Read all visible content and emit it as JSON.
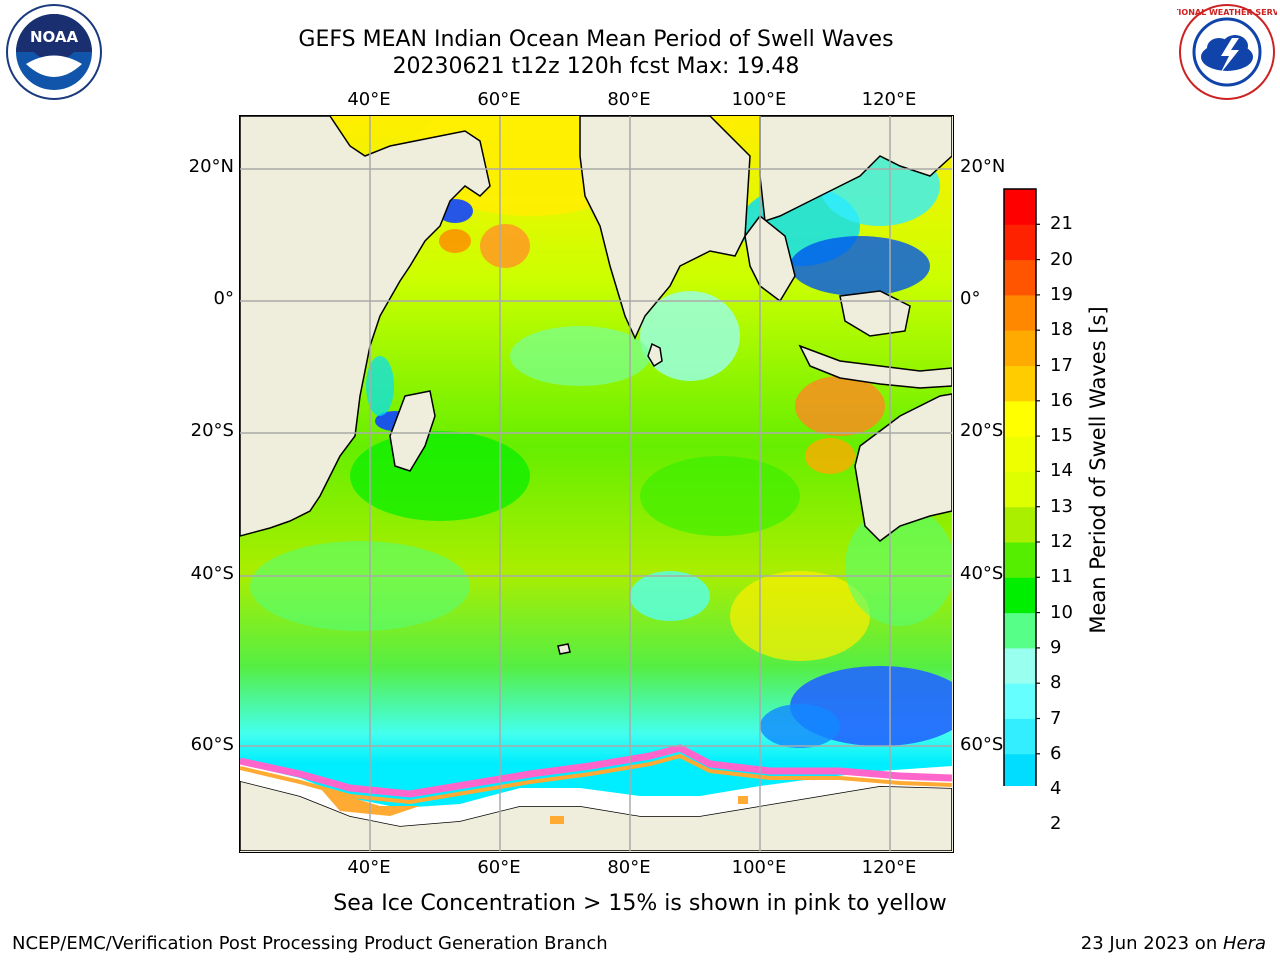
{
  "title": {
    "line1": "GEFS MEAN Indian Ocean Mean Period of Swell Waves",
    "line2": "20230621 t12z 120h fcst   Max: 19.48"
  },
  "map": {
    "lon_ticks": [
      "40°E",
      "60°E",
      "80°E",
      "100°E",
      "120°E"
    ],
    "lat_ticks_left": [
      "20°N",
      "0°",
      "20°S",
      "40°S",
      "60°S"
    ],
    "lat_ticks_right": [
      "20°N",
      "0°",
      "20°S",
      "40°S",
      "60°S"
    ],
    "land_color": "#efeedd",
    "ice_color": "#ff66cc"
  },
  "colorbar": {
    "label": "Mean Period of Swell Waves [s]",
    "ticks": [
      "2",
      "4",
      "6",
      "7",
      "8",
      "9",
      "10",
      "11",
      "12",
      "13",
      "14",
      "15",
      "16",
      "17",
      "18",
      "19",
      "20",
      "21"
    ],
    "colors": [
      "#0066ff",
      "#00ddff",
      "#33eeff",
      "#66ffff",
      "#99ffee",
      "#55ff88",
      "#00ee00",
      "#55ee00",
      "#aaee00",
      "#ddff00",
      "#eeff00",
      "#ffff00",
      "#ffcc00",
      "#ffaa00",
      "#ff8800",
      "#ff5500",
      "#ff2200",
      "#ff0000"
    ],
    "extend_color": "#0000ee"
  },
  "ice_note": "Sea Ice Concentration > 15% is shown in pink to yellow",
  "footer": {
    "left": "NCEP/EMC/Verification Post Processing Product Generation Branch",
    "right_prefix": "23 Jun 2023 on ",
    "right_host": "Hera"
  },
  "logos": {
    "noaa_text": "NOAA",
    "nws_text": "NATIONAL WEATHER SERVICE"
  }
}
